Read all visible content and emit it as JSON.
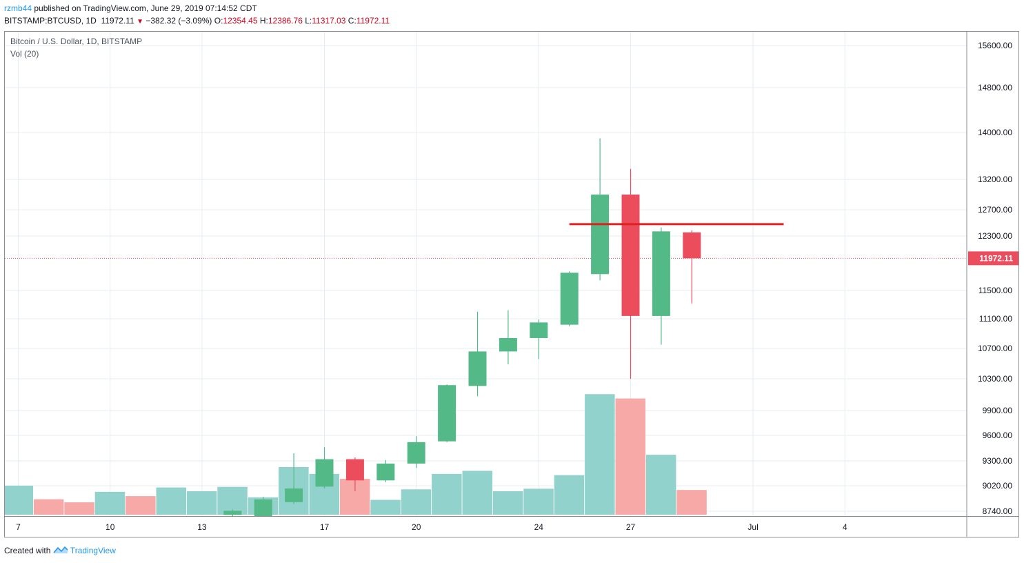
{
  "header": {
    "author": "rzmb44",
    "published_text": "published on TradingView.com, June 29, 2019 07:14:52 CDT",
    "symbol": "BITSTAMP:BTCUSD, 1D",
    "last": "11972.11",
    "change": "−382.32 (−3.09%)",
    "open_label": "O:",
    "open": "12354.45",
    "high_label": "H:",
    "high": "12386.76",
    "low_label": "L:",
    "low": "11317.03",
    "close_label": "C:",
    "close": "11972.11"
  },
  "overlay": {
    "title": "Bitcoin / U.S. Dollar, 1D, BITSTAMP",
    "volume_label": "Vol (20)"
  },
  "footer": {
    "created_with": "Created with",
    "brand": "TradingView"
  },
  "colors": {
    "up": "#53b987",
    "down": "#eb4d5c",
    "vol_up": "#92d2cc",
    "vol_down": "#f7a9a7",
    "grid": "#e6edf0",
    "price_line": "#eb4d5c",
    "resistance": "#e02020"
  },
  "chart_data": {
    "type": "candlestick",
    "price_axis": [
      15600,
      14800,
      14000,
      13200,
      12700,
      12300,
      11500,
      11100,
      10700,
      10300,
      9900,
      9600,
      9300,
      9020,
      8740
    ],
    "price_axis_labels": [
      "15600.00",
      "14800.00",
      "14000.00",
      "13200.00",
      "12700.00",
      "12300.00",
      "11500.00",
      "11100.00",
      "10700.00",
      "10300.00",
      "9900.00",
      "9600.00",
      "9300.00",
      "9020.00",
      "8740.00"
    ],
    "x_ticks": [
      {
        "label": "7",
        "date": "2019-06-07"
      },
      {
        "label": "10",
        "date": "2019-06-10"
      },
      {
        "label": "13",
        "date": "2019-06-13"
      },
      {
        "label": "17",
        "date": "2019-06-17"
      },
      {
        "label": "20",
        "date": "2019-06-20"
      },
      {
        "label": "24",
        "date": "2019-06-24"
      },
      {
        "label": "27",
        "date": "2019-06-27"
      },
      {
        "label": "Jul",
        "date": "2019-07-01"
      },
      {
        "label": "4",
        "date": "2019-07-04"
      }
    ],
    "candles": [
      {
        "date": "2019-06-14",
        "o": 8700,
        "h": 8760,
        "l": 8680,
        "c": 8745
      },
      {
        "date": "2019-06-15",
        "o": 8650,
        "h": 8900,
        "l": 8640,
        "c": 8870
      },
      {
        "date": "2019-06-16",
        "o": 8840,
        "h": 9390,
        "l": 8820,
        "c": 8990
      },
      {
        "date": "2019-06-17",
        "o": 9010,
        "h": 9460,
        "l": 8990,
        "c": 9320
      },
      {
        "date": "2019-06-18",
        "o": 9320,
        "h": 9340,
        "l": 8960,
        "c": 9080
      },
      {
        "date": "2019-06-19",
        "o": 9080,
        "h": 9310,
        "l": 9060,
        "c": 9270
      },
      {
        "date": "2019-06-20",
        "o": 9270,
        "h": 9590,
        "l": 9220,
        "c": 9520
      },
      {
        "date": "2019-06-21",
        "o": 9530,
        "h": 10230,
        "l": 9520,
        "c": 10220
      },
      {
        "date": "2019-06-22",
        "o": 10210,
        "h": 11200,
        "l": 10080,
        "c": 10660
      },
      {
        "date": "2019-06-23",
        "o": 10660,
        "h": 11220,
        "l": 10490,
        "c": 10840
      },
      {
        "date": "2019-06-24",
        "o": 10840,
        "h": 11090,
        "l": 10560,
        "c": 11050
      },
      {
        "date": "2019-06-25",
        "o": 11020,
        "h": 11780,
        "l": 11000,
        "c": 11760
      },
      {
        "date": "2019-06-26",
        "o": 11740,
        "h": 13900,
        "l": 11650,
        "c": 12950
      },
      {
        "date": "2019-06-27",
        "o": 12950,
        "h": 13380,
        "l": 10300,
        "c": 11140
      },
      {
        "date": "2019-06-28",
        "o": 11140,
        "h": 12430,
        "l": 10750,
        "c": 12370
      },
      {
        "date": "2019-06-29",
        "o": 12354.45,
        "h": 12386.76,
        "l": 11317.03,
        "c": 11972.11
      }
    ],
    "volume": [
      {
        "date": "2019-06-07",
        "v": 47,
        "dir": "up"
      },
      {
        "date": "2019-06-08",
        "v": 25,
        "dir": "down"
      },
      {
        "date": "2019-06-09",
        "v": 20,
        "dir": "down"
      },
      {
        "date": "2019-06-10",
        "v": 37,
        "dir": "up"
      },
      {
        "date": "2019-06-11",
        "v": 30,
        "dir": "down"
      },
      {
        "date": "2019-06-12",
        "v": 44,
        "dir": "up"
      },
      {
        "date": "2019-06-13",
        "v": 38,
        "dir": "up"
      },
      {
        "date": "2019-06-14",
        "v": 45,
        "dir": "up"
      },
      {
        "date": "2019-06-15",
        "v": 28,
        "dir": "up"
      },
      {
        "date": "2019-06-16",
        "v": 77,
        "dir": "up"
      },
      {
        "date": "2019-06-17",
        "v": 66,
        "dir": "up"
      },
      {
        "date": "2019-06-18",
        "v": 58,
        "dir": "down"
      },
      {
        "date": "2019-06-19",
        "v": 24,
        "dir": "up"
      },
      {
        "date": "2019-06-20",
        "v": 41,
        "dir": "up"
      },
      {
        "date": "2019-06-21",
        "v": 66,
        "dir": "up"
      },
      {
        "date": "2019-06-22",
        "v": 71,
        "dir": "up"
      },
      {
        "date": "2019-06-23",
        "v": 38,
        "dir": "up"
      },
      {
        "date": "2019-06-24",
        "v": 42,
        "dir": "up"
      },
      {
        "date": "2019-06-25",
        "v": 64,
        "dir": "up"
      },
      {
        "date": "2019-06-26",
        "v": 195,
        "dir": "up"
      },
      {
        "date": "2019-06-27",
        "v": 188,
        "dir": "down"
      },
      {
        "date": "2019-06-28",
        "v": 97,
        "dir": "up"
      },
      {
        "date": "2019-06-29",
        "v": 40,
        "dir": "down"
      }
    ],
    "resistance_line": {
      "price": 12480,
      "from": "2019-06-25",
      "to": "2019-07-02"
    },
    "last_price_label": "11972.11",
    "last_price": 11972.11,
    "grid": true,
    "xlabel": "",
    "ylabel": ""
  }
}
